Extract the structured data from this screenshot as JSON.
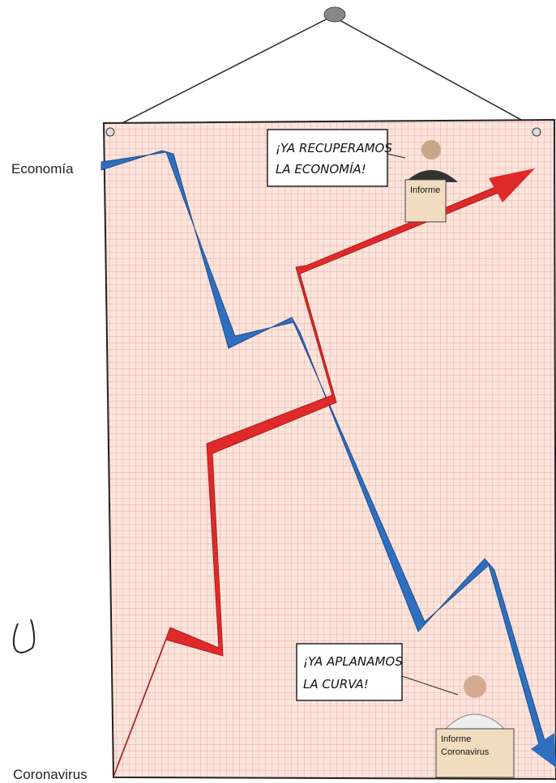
{
  "labels": {
    "economy": "Economía",
    "coronavirus": "Coronavirus"
  },
  "bubbles": [
    {
      "lines": [
        "¡YA RECUPERAMOS",
        "LA ECONOMÍA!"
      ]
    },
    {
      "lines": [
        "¡YA APLANAMOS",
        "LA CURVA!"
      ]
    }
  ],
  "podiums": [
    {
      "lines": [
        "Informe"
      ]
    },
    {
      "lines": [
        "Informe",
        "Coronavirus"
      ]
    }
  ]
}
